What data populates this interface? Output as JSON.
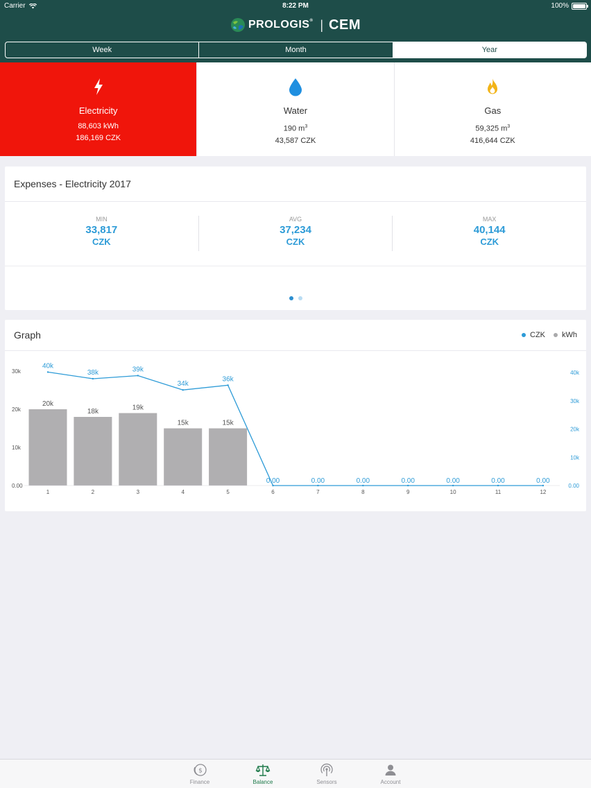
{
  "status_bar": {
    "carrier": "Carrier",
    "time": "8:22 PM",
    "battery": "100%"
  },
  "header": {
    "brand": "PROLOGIS",
    "brand_mark": "®",
    "product": "CEM"
  },
  "period_tabs": [
    {
      "label": "Week",
      "active": false
    },
    {
      "label": "Month",
      "active": false
    },
    {
      "label": "Year",
      "active": true
    }
  ],
  "utilities": [
    {
      "name": "Electricity",
      "icon": "lightning-icon",
      "line1": "88,603 kWh",
      "line2": "186,169 CZK",
      "active": true
    },
    {
      "name": "Water",
      "icon": "water-drop-icon",
      "line1_value": "190 m",
      "line1_sup": "3",
      "line2": "43,587 CZK",
      "active": false
    },
    {
      "name": "Gas",
      "icon": "flame-icon",
      "line1_value": "59,325 m",
      "line1_sup": "3",
      "line2": "416,644 CZK",
      "active": false
    }
  ],
  "expenses": {
    "title": "Expenses - Electricity 2017",
    "stats": [
      {
        "label": "MIN",
        "value": "33,817",
        "unit": "CZK"
      },
      {
        "label": "AVG",
        "value": "37,234",
        "unit": "CZK"
      },
      {
        "label": "MAX",
        "value": "40,144",
        "unit": "CZK"
      }
    ],
    "pages": 2,
    "active_page": 0
  },
  "graph": {
    "title": "Graph",
    "legend": [
      {
        "label": "CZK",
        "color": "#2d9bd7"
      },
      {
        "label": "kWh",
        "color": "#a9a9ab"
      }
    ]
  },
  "chart_data": {
    "type": "bar",
    "categories": [
      "1",
      "2",
      "3",
      "4",
      "5",
      "6",
      "7",
      "8",
      "9",
      "10",
      "11",
      "12"
    ],
    "series": [
      {
        "name": "kWh",
        "type": "bar",
        "axis": "left",
        "color": "#b0afb1",
        "values": [
          20000,
          18000,
          19000,
          15000,
          15000,
          0,
          0,
          0,
          0,
          0,
          0,
          0
        ],
        "labels": [
          "20k",
          "18k",
          "19k",
          "15k",
          "15k",
          "",
          "",
          "",
          "",
          "",
          "",
          ""
        ]
      },
      {
        "name": "CZK",
        "type": "line",
        "axis": "right",
        "color": "#2d9bd7",
        "values": [
          40144,
          37800,
          38900,
          33817,
          35500,
          0,
          0,
          0,
          0,
          0,
          0,
          0
        ],
        "labels": [
          "40k",
          "38k",
          "39k",
          "34k",
          "36k",
          "0.00",
          "0.00",
          "0.00",
          "0.00",
          "0.00",
          "0.00",
          "0.00"
        ]
      }
    ],
    "y_left": {
      "ticks": [
        0,
        10000,
        20000,
        30000
      ],
      "tick_labels": [
        "0.00",
        "10k",
        "20k",
        "30k"
      ],
      "range": [
        0,
        30000
      ]
    },
    "y_right": {
      "ticks": [
        0,
        10000,
        20000,
        30000,
        40000
      ],
      "tick_labels": [
        "0.00",
        "10k",
        "20k",
        "30k",
        "40k"
      ],
      "range": [
        0,
        40000
      ]
    },
    "grid": false,
    "legend_position": "top-right"
  },
  "tabbar": [
    {
      "label": "Finance",
      "icon": "finance-coin-icon",
      "active": false
    },
    {
      "label": "Balance",
      "icon": "balance-scale-icon",
      "active": true
    },
    {
      "label": "Sensors",
      "icon": "sensor-signal-icon",
      "active": false
    },
    {
      "label": "Account",
      "icon": "account-person-icon",
      "active": false
    }
  ]
}
